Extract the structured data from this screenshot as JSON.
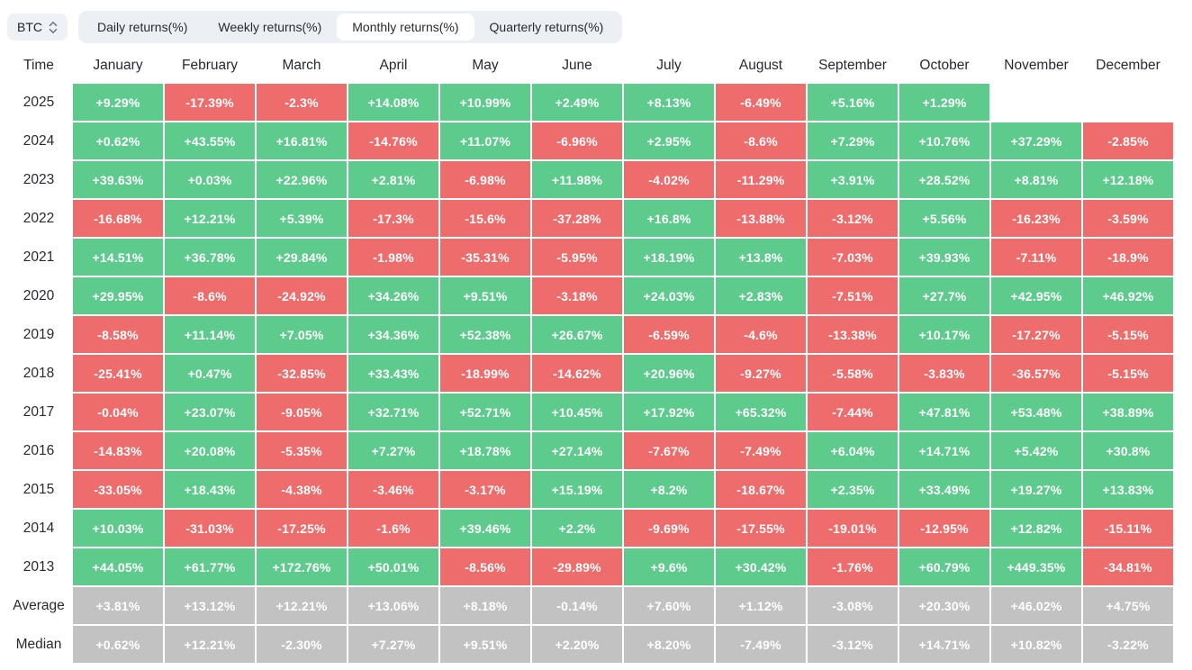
{
  "controls": {
    "symbol": "BTC",
    "symbol_icon": "updown-chevron",
    "tabs": [
      {
        "label": "Daily returns(%)",
        "active": false
      },
      {
        "label": "Weekly returns(%)",
        "active": false
      },
      {
        "label": "Monthly returns(%)",
        "active": true
      },
      {
        "label": "Quarterly returns(%)",
        "active": false
      }
    ]
  },
  "colors": {
    "positive": "#5dcb8c",
    "negative": "#ee6c6c",
    "summary": "#c2c2c2",
    "tab_bar": "#eceff3",
    "active_tab": "#ffffff"
  },
  "chart_data": {
    "type": "table",
    "title": "BTC Monthly returns(%)",
    "time_header": "Time",
    "month_headers": [
      "January",
      "February",
      "March",
      "April",
      "May",
      "June",
      "July",
      "August",
      "September",
      "October",
      "November",
      "December"
    ],
    "rows": [
      {
        "label": "2025",
        "type": "year",
        "values": [
          "+9.29%",
          "-17.39%",
          "-2.3%",
          "+14.08%",
          "+10.99%",
          "+2.49%",
          "+8.13%",
          "-6.49%",
          "+5.16%",
          "+1.29%",
          "",
          ""
        ]
      },
      {
        "label": "2024",
        "type": "year",
        "values": [
          "+0.62%",
          "+43.55%",
          "+16.81%",
          "-14.76%",
          "+11.07%",
          "-6.96%",
          "+2.95%",
          "-8.6%",
          "+7.29%",
          "+10.76%",
          "+37.29%",
          "-2.85%"
        ]
      },
      {
        "label": "2023",
        "type": "year",
        "values": [
          "+39.63%",
          "+0.03%",
          "+22.96%",
          "+2.81%",
          "-6.98%",
          "+11.98%",
          "-4.02%",
          "-11.29%",
          "+3.91%",
          "+28.52%",
          "+8.81%",
          "+12.18%"
        ]
      },
      {
        "label": "2022",
        "type": "year",
        "values": [
          "-16.68%",
          "+12.21%",
          "+5.39%",
          "-17.3%",
          "-15.6%",
          "-37.28%",
          "+16.8%",
          "-13.88%",
          "-3.12%",
          "+5.56%",
          "-16.23%",
          "-3.59%"
        ]
      },
      {
        "label": "2021",
        "type": "year",
        "values": [
          "+14.51%",
          "+36.78%",
          "+29.84%",
          "-1.98%",
          "-35.31%",
          "-5.95%",
          "+18.19%",
          "+13.8%",
          "-7.03%",
          "+39.93%",
          "-7.11%",
          "-18.9%"
        ]
      },
      {
        "label": "2020",
        "type": "year",
        "values": [
          "+29.95%",
          "-8.6%",
          "-24.92%",
          "+34.26%",
          "+9.51%",
          "-3.18%",
          "+24.03%",
          "+2.83%",
          "-7.51%",
          "+27.7%",
          "+42.95%",
          "+46.92%"
        ]
      },
      {
        "label": "2019",
        "type": "year",
        "values": [
          "-8.58%",
          "+11.14%",
          "+7.05%",
          "+34.36%",
          "+52.38%",
          "+26.67%",
          "-6.59%",
          "-4.6%",
          "-13.38%",
          "+10.17%",
          "-17.27%",
          "-5.15%"
        ]
      },
      {
        "label": "2018",
        "type": "year",
        "values": [
          "-25.41%",
          "+0.47%",
          "-32.85%",
          "+33.43%",
          "-18.99%",
          "-14.62%",
          "+20.96%",
          "-9.27%",
          "-5.58%",
          "-3.83%",
          "-36.57%",
          "-5.15%"
        ]
      },
      {
        "label": "2017",
        "type": "year",
        "values": [
          "-0.04%",
          "+23.07%",
          "-9.05%",
          "+32.71%",
          "+52.71%",
          "+10.45%",
          "+17.92%",
          "+65.32%",
          "-7.44%",
          "+47.81%",
          "+53.48%",
          "+38.89%"
        ]
      },
      {
        "label": "2016",
        "type": "year",
        "values": [
          "-14.83%",
          "+20.08%",
          "-5.35%",
          "+7.27%",
          "+18.78%",
          "+27.14%",
          "-7.67%",
          "-7.49%",
          "+6.04%",
          "+14.71%",
          "+5.42%",
          "+30.8%"
        ]
      },
      {
        "label": "2015",
        "type": "year",
        "values": [
          "-33.05%",
          "+18.43%",
          "-4.38%",
          "-3.46%",
          "-3.17%",
          "+15.19%",
          "+8.2%",
          "-18.67%",
          "+2.35%",
          "+33.49%",
          "+19.27%",
          "+13.83%"
        ]
      },
      {
        "label": "2014",
        "type": "year",
        "values": [
          "+10.03%",
          "-31.03%",
          "-17.25%",
          "-1.6%",
          "+39.46%",
          "+2.2%",
          "-9.69%",
          "-17.55%",
          "-19.01%",
          "-12.95%",
          "+12.82%",
          "-15.11%"
        ]
      },
      {
        "label": "2013",
        "type": "year",
        "values": [
          "+44.05%",
          "+61.77%",
          "+172.76%",
          "+50.01%",
          "-8.56%",
          "-29.89%",
          "+9.6%",
          "+30.42%",
          "-1.76%",
          "+60.79%",
          "+449.35%",
          "-34.81%"
        ]
      },
      {
        "label": "Average",
        "type": "summary",
        "values": [
          "+3.81%",
          "+13.12%",
          "+12.21%",
          "+13.06%",
          "+8.18%",
          "-0.14%",
          "+7.60%",
          "+1.12%",
          "-3.08%",
          "+20.30%",
          "+46.02%",
          "+4.75%"
        ]
      },
      {
        "label": "Median",
        "type": "summary",
        "values": [
          "+0.62%",
          "+12.21%",
          "-2.30%",
          "+7.27%",
          "+9.51%",
          "+2.20%",
          "+8.20%",
          "-7.49%",
          "-3.12%",
          "+14.71%",
          "+10.82%",
          "-3.22%"
        ]
      }
    ]
  }
}
